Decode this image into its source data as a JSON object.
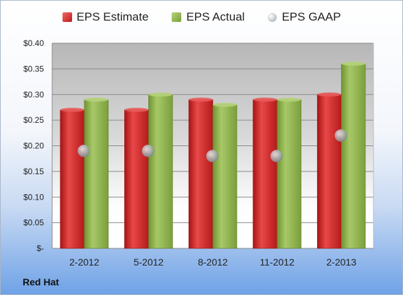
{
  "company": "Red Hat",
  "chart_data": {
    "type": "bar",
    "categories": [
      "2-2012",
      "5-2012",
      "8-2012",
      "11-2012",
      "2-2013"
    ],
    "series": [
      {
        "name": "EPS Estimate",
        "kind": "bar",
        "color": "#c42020",
        "values": [
          0.27,
          0.27,
          0.29,
          0.29,
          0.3
        ]
      },
      {
        "name": "EPS Actual",
        "kind": "bar",
        "color": "#8db04a",
        "values": [
          0.29,
          0.3,
          0.28,
          0.29,
          0.36
        ]
      },
      {
        "name": "EPS GAAP",
        "kind": "marker",
        "color": "#a6acb4",
        "values": [
          0.19,
          0.19,
          0.18,
          0.18,
          0.22
        ]
      }
    ],
    "yticks": [
      "$-",
      "$0.05",
      "$0.10",
      "$0.15",
      "$0.20",
      "$0.25",
      "$0.30",
      "$0.35",
      "$0.40"
    ],
    "ylim": [
      0,
      0.4
    ],
    "grid": true,
    "legend_position": "top"
  }
}
